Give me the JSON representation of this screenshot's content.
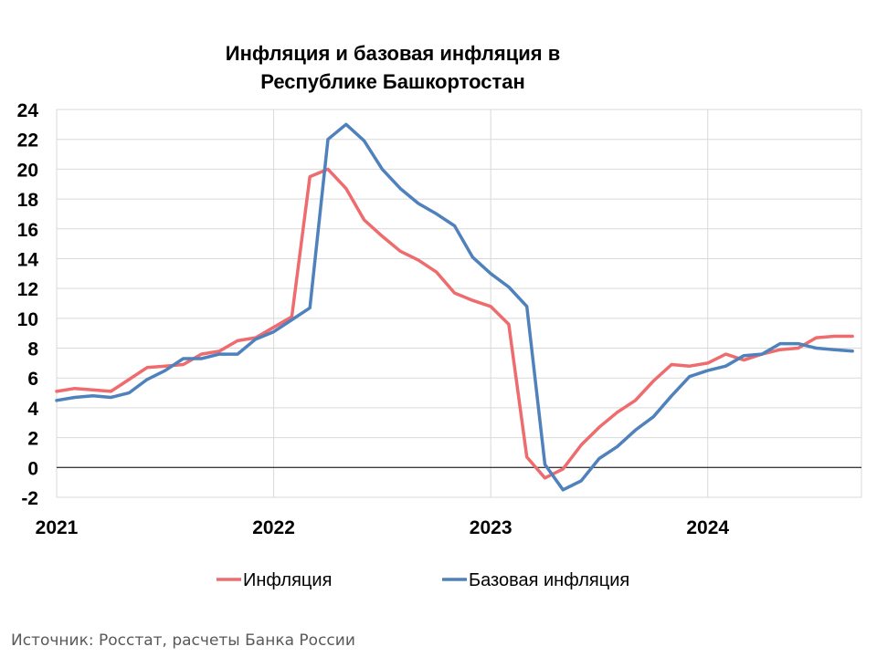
{
  "chart_data": {
    "type": "line",
    "title_lines": [
      "Инфляция и базовая инфляция в",
      "Республике Башкортостан"
    ],
    "xlabel": "",
    "ylabel": "",
    "ylim": [
      -2,
      24
    ],
    "yticks": [
      -2,
      0,
      2,
      4,
      6,
      8,
      10,
      12,
      14,
      16,
      18,
      20,
      22,
      24
    ],
    "xlim": [
      "2021-01",
      "2024-09"
    ],
    "year_labels": [
      "2021",
      "2022",
      "2023",
      "2024"
    ],
    "grid": true,
    "legend_position": "bottom",
    "x": [
      "2021-01",
      "2021-02",
      "2021-03",
      "2021-04",
      "2021-05",
      "2021-06",
      "2021-07",
      "2021-08",
      "2021-09",
      "2021-10",
      "2021-11",
      "2021-12",
      "2022-01",
      "2022-02",
      "2022-03",
      "2022-04",
      "2022-05",
      "2022-06",
      "2022-07",
      "2022-08",
      "2022-09",
      "2022-10",
      "2022-11",
      "2022-12",
      "2023-01",
      "2023-02",
      "2023-03",
      "2023-04",
      "2023-05",
      "2023-06",
      "2023-07",
      "2023-08",
      "2023-09",
      "2023-10",
      "2023-11",
      "2023-12",
      "2024-01",
      "2024-02",
      "2024-03",
      "2024-04",
      "2024-05",
      "2024-06",
      "2024-07",
      "2024-08",
      "2024-09"
    ],
    "series": [
      {
        "name": "Инфляция",
        "color": "#ee6b6e",
        "values": [
          5.1,
          5.3,
          5.2,
          5.1,
          5.9,
          6.7,
          6.8,
          6.9,
          7.6,
          7.8,
          8.5,
          8.7,
          9.4,
          10.1,
          19.5,
          20.0,
          18.7,
          16.6,
          15.5,
          14.5,
          13.9,
          13.1,
          11.7,
          11.2,
          10.8,
          9.6,
          0.7,
          -0.7,
          -0.1,
          1.5,
          2.7,
          3.7,
          4.5,
          5.8,
          6.9,
          6.8,
          7.0,
          7.6,
          7.2,
          7.6,
          7.9,
          8.0,
          8.7,
          8.8,
          8.8
        ]
      },
      {
        "name": "Базовая инфляция",
        "color": "#4f81bd",
        "values": [
          4.5,
          4.7,
          4.8,
          4.7,
          5.0,
          5.9,
          6.5,
          7.3,
          7.3,
          7.6,
          7.6,
          8.6,
          9.1,
          9.9,
          10.7,
          22.0,
          23.0,
          21.9,
          20.0,
          18.7,
          17.7,
          17.0,
          16.2,
          14.1,
          13.0,
          12.1,
          10.8,
          0.2,
          -1.5,
          -0.9,
          0.6,
          1.4,
          2.5,
          3.4,
          4.8,
          6.1,
          6.5,
          6.8,
          7.5,
          7.6,
          8.3,
          8.3,
          8.0,
          7.9,
          7.8
        ]
      }
    ]
  },
  "source_note": "Источник: Росстат, расчеты Банка России"
}
